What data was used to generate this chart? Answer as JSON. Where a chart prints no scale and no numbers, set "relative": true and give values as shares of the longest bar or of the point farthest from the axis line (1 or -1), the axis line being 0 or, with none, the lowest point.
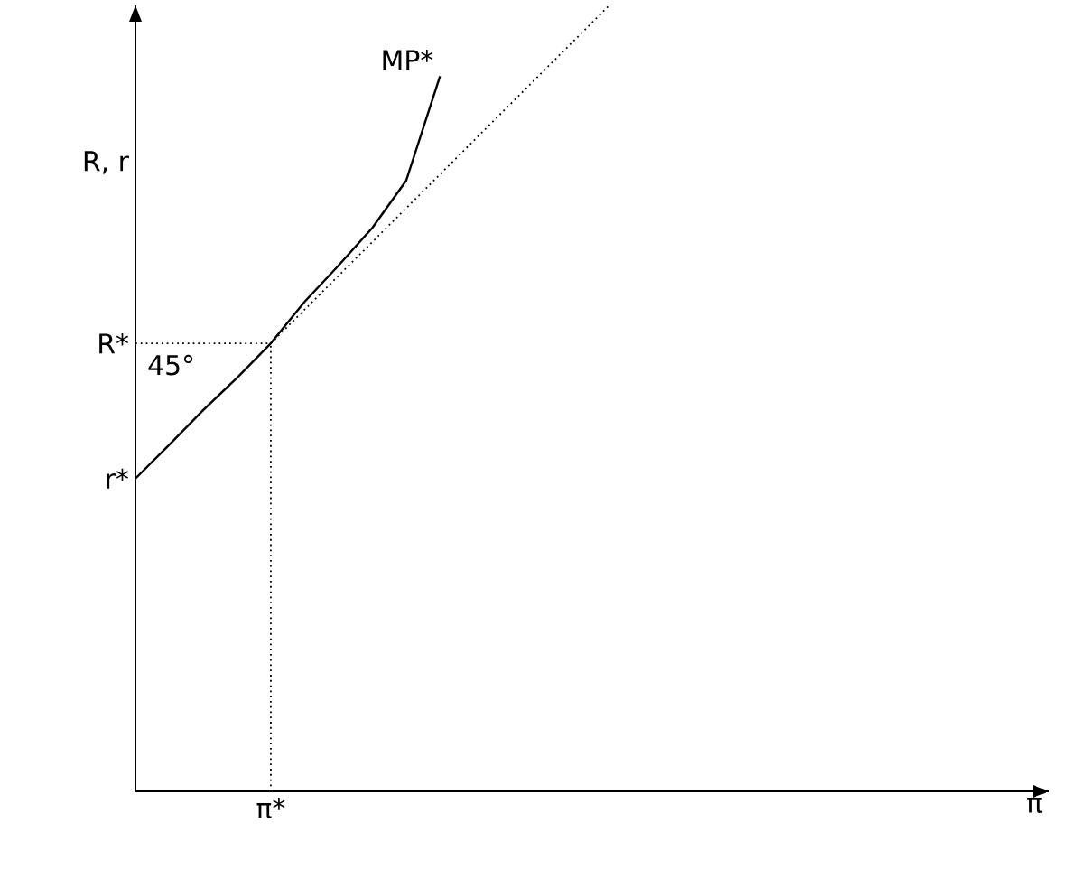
{
  "chart_data": {
    "type": "line",
    "relative": true,
    "xlabel": "π",
    "ylabel": "R, r",
    "categories": [
      null,
      null,
      null,
      null,
      null,
      null,
      null,
      null,
      null,
      null,
      null,
      null,
      null,
      null,
      null,
      null,
      null,
      null,
      null,
      null,
      null,
      null,
      null,
      null,
      null,
      null,
      null,
      null
    ],
    "series": [
      {
        "name": "MP*",
        "color": "#000000",
        "line_style": "solid",
        "values": [
          0.398,
          0.441,
          0.485,
          0.526,
          0.57,
          0.623,
          0.669,
          0.717,
          0.777,
          0.91,
          null,
          null,
          null,
          null,
          null,
          null,
          null,
          null,
          null,
          null,
          null,
          null,
          null,
          null,
          null,
          null,
          null,
          null
        ]
      },
      {
        "color": "#000000",
        "line_style": "dotted",
        "values": [
          null,
          null,
          null,
          null,
          0.57,
          0.613,
          0.656,
          0.699,
          0.742,
          0.785,
          0.828,
          0.871,
          0.914,
          0.957,
          1.0,
          null,
          null,
          null,
          null,
          null,
          null,
          null,
          null,
          null,
          null,
          null,
          null,
          null
        ]
      }
    ],
    "ref_lines": [
      {
        "axis": "y",
        "value": 0.57,
        "label": "R*",
        "line_style": "dotted"
      },
      {
        "axis": "x",
        "line_style": "dotted"
      }
    ],
    "annotations": [
      "r*",
      "45°",
      "π*"
    ]
  }
}
